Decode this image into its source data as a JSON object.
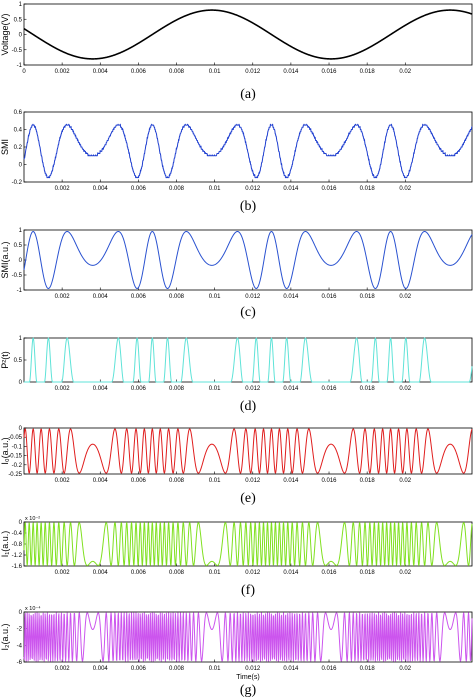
{
  "chart_data": [
    {
      "type": "line",
      "caption": "(a)",
      "ylabel": "Voltage(V)",
      "xlabel": "",
      "xlim": [
        0,
        0.0235
      ],
      "ylim": [
        -1,
        1
      ],
      "x_ticks": [
        "0",
        "0.002",
        "0.004",
        "0.006",
        "0.008",
        "0.01",
        "0.012",
        "0.014",
        "0.016",
        "0.018",
        "0.02"
      ],
      "y_ticks": [
        "-1",
        "-0.5",
        "0",
        "0.5",
        "1"
      ],
      "color": "#000000",
      "series": [
        {
          "values_description": "",
          "x": [
            0,
            0.002,
            0.004,
            0.006,
            0.008,
            0.01,
            0.012,
            0.014,
            0.016,
            0.018,
            0.02,
            0.0235
          ],
          "y": [
            0.25,
            -0.33,
            -0.8,
            -0.6,
            0.15,
            0.8,
            0.6,
            -0.1,
            -0.8,
            -0.5,
            0.3,
            0.8
          ]
        }
      ]
    },
    {
      "type": "line",
      "caption": "(b)",
      "ylabel": "SMI",
      "xlabel": "",
      "xlim": [
        0,
        0.0235
      ],
      "ylim": [
        -0.2,
        0.6
      ],
      "x_ticks": [
        "0.002",
        "0.004",
        "0.006",
        "0.008",
        "0.01",
        "0.012",
        "0.014",
        "0.016",
        "0.018",
        "0.02"
      ],
      "y_ticks": [
        "-0.2",
        "0",
        "0.2",
        "0.4",
        "0.6"
      ],
      "color": "#1f3fd0",
      "peaks_x": [
        0.0011,
        0.0036,
        0.0068,
        0.0088,
        0.0113,
        0.0138,
        0.0163,
        0.0193,
        0.0221
      ],
      "peaks_y": [
        0.42,
        0.38,
        0.42,
        0.43,
        0.36,
        0.37,
        0.37,
        0.45,
        0.42
      ],
      "troughs_y": [
        -0.05,
        -0.15,
        -0.05,
        -0.05,
        -0.1,
        -0.05,
        -0.1,
        -0.15,
        -0.1
      ]
    },
    {
      "type": "line",
      "caption": "(c)",
      "ylabel": "SMI(a.u.)",
      "xlabel": "",
      "xlim": [
        0,
        0.0235
      ],
      "ylim": [
        -1,
        1
      ],
      "x_ticks": [
        "0.002",
        "0.004",
        "0.006",
        "0.008",
        "0.01",
        "0.012",
        "0.014",
        "0.016",
        "0.018",
        "0.02"
      ],
      "y_ticks": [
        "-1",
        "-0.5",
        "0",
        "0.5",
        "1"
      ],
      "color": "#2a52d0",
      "peaks_x": [
        0.0011,
        0.0036,
        0.0068,
        0.0088,
        0.0113,
        0.0138,
        0.0163,
        0.0193,
        0.0221
      ],
      "peaks_y": [
        0.95,
        0.85,
        0.9,
        0.95,
        0.72,
        0.75,
        0.8,
        0.95,
        0.9
      ],
      "troughs_y": [
        -0.95,
        -0.8,
        -0.95,
        -0.95,
        -0.3,
        -0.95,
        -0.95,
        -0.95,
        -0.95
      ]
    },
    {
      "type": "line",
      "caption": "(d)",
      "ylabel": "P²(t)",
      "xlabel": "",
      "xlim": [
        0,
        0.0235
      ],
      "ylim": [
        0,
        1
      ],
      "x_ticks": [
        "0.002",
        "0.004",
        "0.006",
        "0.008",
        "0.01",
        "0.012",
        "0.014",
        "0.016",
        "0.018",
        "0.02"
      ],
      "y_ticks": [
        "0",
        "0.5",
        "1"
      ],
      "color": "#5fe3d8"
    },
    {
      "type": "line",
      "caption": "(e)",
      "ylabel": "I₀(a.u.)",
      "xlabel": "",
      "xlim": [
        0,
        0.0235
      ],
      "ylim": [
        -0.25,
        0
      ],
      "x_ticks": [
        "0.002",
        "0.004",
        "0.006",
        "0.008",
        "0.01",
        "0.012",
        "0.014",
        "0.016",
        "0.018",
        "0.02"
      ],
      "y_ticks": [
        "-0.25",
        "-0.2",
        "-0.15",
        "-0.1",
        "-0.05",
        "0"
      ],
      "color": "#e01e1e"
    },
    {
      "type": "line",
      "caption": "(f)",
      "ylabel": "I₁(a.u.)",
      "xlabel": "",
      "xlim": [
        0,
        0.0235
      ],
      "ylim": [
        -1.6,
        0
      ],
      "exponent": "x 10⁻²",
      "x_ticks": [
        "0.002",
        "0.004",
        "0.006",
        "0.008",
        "0.01",
        "0.012",
        "0.014",
        "0.016",
        "0.018",
        "0.02"
      ],
      "y_ticks": [
        "-1.6",
        "-1.2",
        "-0.8",
        "-0.4",
        "0"
      ],
      "color": "#80e020"
    },
    {
      "type": "line",
      "caption": "(g)",
      "ylabel": "I₂(a.u.)",
      "xlabel": "Time(s)",
      "xlim": [
        0,
        0.0235
      ],
      "ylim": [
        -6,
        0
      ],
      "exponent": "x 10⁻⁴",
      "x_ticks": [
        "0.002",
        "0.004",
        "0.006",
        "0.008",
        "0.01",
        "0.012",
        "0.014",
        "0.016",
        "0.018",
        "0.02"
      ],
      "y_ticks": [
        "-6",
        "-4",
        "-2",
        "0"
      ],
      "color": "#cc55ee"
    }
  ]
}
